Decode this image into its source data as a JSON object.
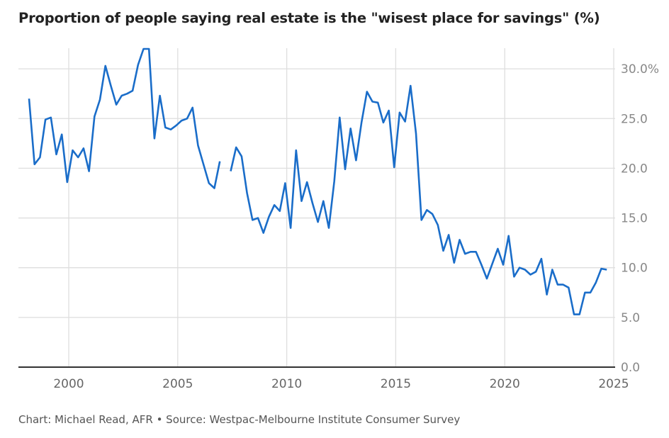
{
  "chart_data": {
    "type": "line",
    "title": "Proportion of people saying real estate is the \"wisest place for savings\" (%)",
    "footer": "Chart: Michael Read, AFR • Source: Westpac-Melbourne Institute Consumer Survey",
    "xlabel": "",
    "ylabel": "",
    "xlim": [
      1997.8,
      2025
    ],
    "ylim": [
      0,
      32
    ],
    "x_ticks": [
      "2000",
      "2005",
      "2010",
      "2015",
      "2020",
      "2025"
    ],
    "y_ticks": [
      "0.0",
      "5.0",
      "10.0",
      "15.0",
      "20.0",
      "25.0",
      "30.0%"
    ],
    "grid": true,
    "line_color": "#1a6dc9",
    "first_quarter": "1998Q1",
    "values": [
      27.0,
      20.4,
      21.1,
      24.9,
      25.1,
      21.4,
      23.4,
      18.6,
      21.8,
      21.1,
      22.0,
      19.7,
      25.2,
      26.9,
      30.3,
      28.3,
      26.4,
      27.3,
      27.5,
      27.8,
      30.4,
      32.0,
      32.0,
      23.0,
      27.3,
      24.1,
      23.9,
      24.3,
      24.8,
      25.0,
      26.1,
      22.3,
      20.4,
      18.5,
      18.0,
      20.7,
      null,
      19.7,
      22.1,
      21.2,
      17.5,
      14.8,
      15.0,
      13.5,
      15.1,
      16.3,
      15.7,
      18.5,
      14.0,
      21.8,
      16.7,
      18.6,
      16.5,
      14.6,
      16.7,
      14.0,
      18.7,
      25.1,
      19.9,
      24.0,
      20.8,
      24.6,
      27.7,
      26.7,
      26.6,
      24.6,
      25.8,
      20.1,
      25.6,
      24.7,
      28.3,
      23.5,
      14.8,
      15.8,
      15.4,
      14.3,
      11.7,
      13.3,
      10.5,
      12.8,
      11.4,
      11.6,
      11.6,
      10.3,
      8.9,
      10.4,
      11.9,
      10.3,
      13.2,
      9.1,
      10.0,
      9.8,
      9.3,
      9.6,
      10.9,
      7.3,
      9.8,
      8.3,
      8.3,
      8.0,
      5.3,
      5.3,
      7.5,
      7.5,
      8.5,
      9.9,
      9.8
    ]
  }
}
